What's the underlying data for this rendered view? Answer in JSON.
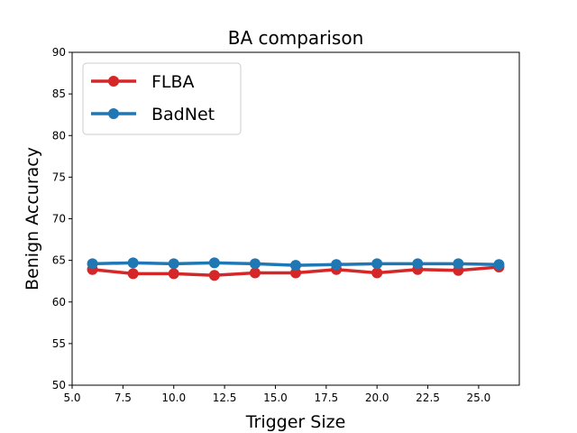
{
  "chart_data": {
    "type": "line",
    "title": "BA comparison",
    "xlabel": "Trigger Size",
    "ylabel": "Benign Accuracy",
    "xlim": [
      5.0,
      27.0
    ],
    "ylim": [
      50,
      90
    ],
    "xticks": [
      5.0,
      7.5,
      10.0,
      12.5,
      15.0,
      17.5,
      20.0,
      22.5,
      25.0
    ],
    "xtick_labels": [
      "5.0",
      "7.5",
      "10.0",
      "12.5",
      "15.0",
      "17.5",
      "20.0",
      "22.5",
      "25.0"
    ],
    "yticks": [
      50,
      55,
      60,
      65,
      70,
      75,
      80,
      85,
      90
    ],
    "ytick_labels": [
      "50",
      "55",
      "60",
      "65",
      "70",
      "75",
      "80",
      "85",
      "90"
    ],
    "x": [
      6,
      8,
      10,
      12,
      14,
      16,
      18,
      20,
      22,
      24,
      26
    ],
    "series": [
      {
        "name": "FLBA",
        "color": "#d62728",
        "values": [
          63.9,
          63.4,
          63.4,
          63.2,
          63.5,
          63.5,
          63.9,
          63.5,
          63.9,
          63.8,
          64.2
        ]
      },
      {
        "name": "BadNet",
        "color": "#1f77b4",
        "values": [
          64.6,
          64.7,
          64.6,
          64.7,
          64.6,
          64.4,
          64.5,
          64.6,
          64.6,
          64.6,
          64.5
        ]
      }
    ],
    "grid": false,
    "legend_position": "top-left"
  }
}
